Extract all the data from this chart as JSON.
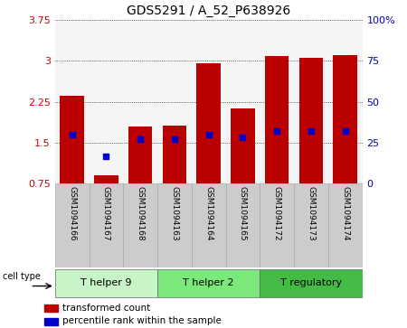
{
  "title": "GDS5291 / A_52_P638926",
  "samples": [
    "GSM1094166",
    "GSM1094167",
    "GSM1094168",
    "GSM1094163",
    "GSM1094164",
    "GSM1094165",
    "GSM1094172",
    "GSM1094173",
    "GSM1094174"
  ],
  "transformed_counts": [
    2.35,
    0.9,
    1.8,
    1.82,
    2.95,
    2.12,
    3.08,
    3.05,
    3.1
  ],
  "percentile_ranks": [
    1.65,
    1.25,
    1.57,
    1.57,
    1.65,
    1.6,
    1.72,
    1.72,
    1.72
  ],
  "bar_bottom": 0.75,
  "ylim": [
    0.75,
    3.75
  ],
  "yticks": [
    0.75,
    1.5,
    2.25,
    3.0,
    3.75
  ],
  "ytick_labels": [
    "0.75",
    "1.5",
    "2.25",
    "3",
    "3.75"
  ],
  "y2lim": [
    0,
    100
  ],
  "y2ticks": [
    0,
    25,
    50,
    75,
    100
  ],
  "y2tick_labels": [
    "0",
    "25",
    "50",
    "75",
    "100%"
  ],
  "bar_color": "#bb0000",
  "blue_color": "#0000cc",
  "bar_width": 0.7,
  "cell_groups": [
    {
      "label": "T helper 9",
      "start": 0,
      "end": 3,
      "color": "#c8f5c8"
    },
    {
      "label": "T helper 2",
      "start": 3,
      "end": 6,
      "color": "#7ae87a"
    },
    {
      "label": "T regulatory",
      "start": 6,
      "end": 9,
      "color": "#44bb44"
    }
  ],
  "cell_type_label": "cell type",
  "legend_items": [
    {
      "label": "transformed count",
      "color": "#bb0000"
    },
    {
      "label": "percentile rank within the sample",
      "color": "#0000cc"
    }
  ],
  "sample_box_color": "#cccccc",
  "sample_box_edge": "#aaaaaa",
  "plot_bg": "#f5f5f5"
}
